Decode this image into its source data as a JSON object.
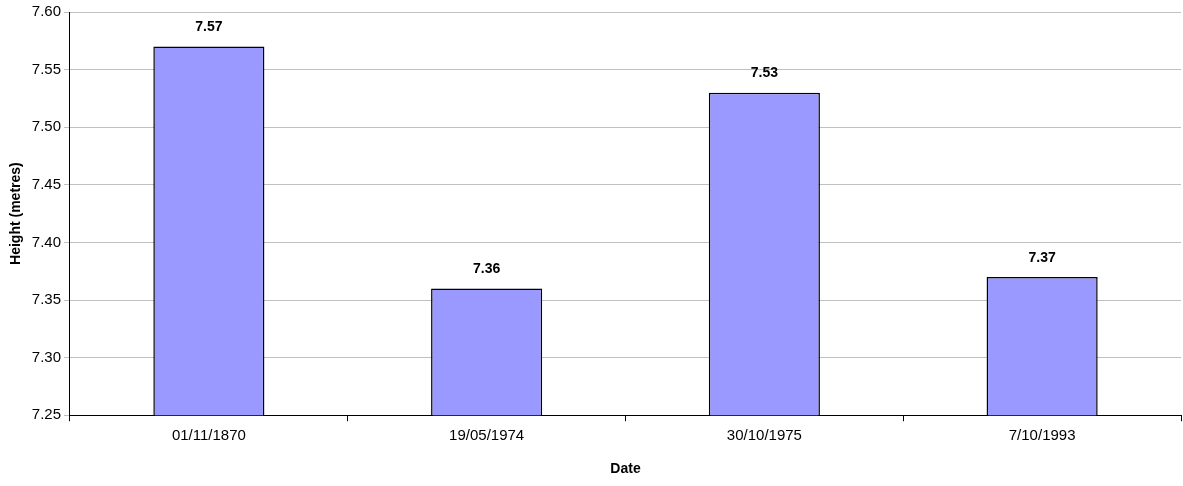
{
  "chart_data": {
    "type": "bar",
    "xlabel": "Date",
    "ylabel": "Height (metres)",
    "categories": [
      "01/11/1870",
      "19/05/1974",
      "30/10/1975",
      "7/10/1993"
    ],
    "values": [
      7.57,
      7.36,
      7.53,
      7.37
    ],
    "color": "#9999ff",
    "ylim": [
      7.25,
      7.6
    ],
    "yticks": [
      {
        "value": 7.25,
        "label": "7.25"
      },
      {
        "value": 7.3,
        "label": "7.30"
      },
      {
        "value": 7.35,
        "label": "7.35"
      },
      {
        "value": 7.4,
        "label": "7.40"
      },
      {
        "value": 7.45,
        "label": "7.45"
      },
      {
        "value": 7.5,
        "label": "7.50"
      },
      {
        "value": 7.55,
        "label": "7.55"
      },
      {
        "value": 7.6,
        "label": "7.60"
      }
    ],
    "grid": "y",
    "data_labels": true,
    "legend": false
  }
}
